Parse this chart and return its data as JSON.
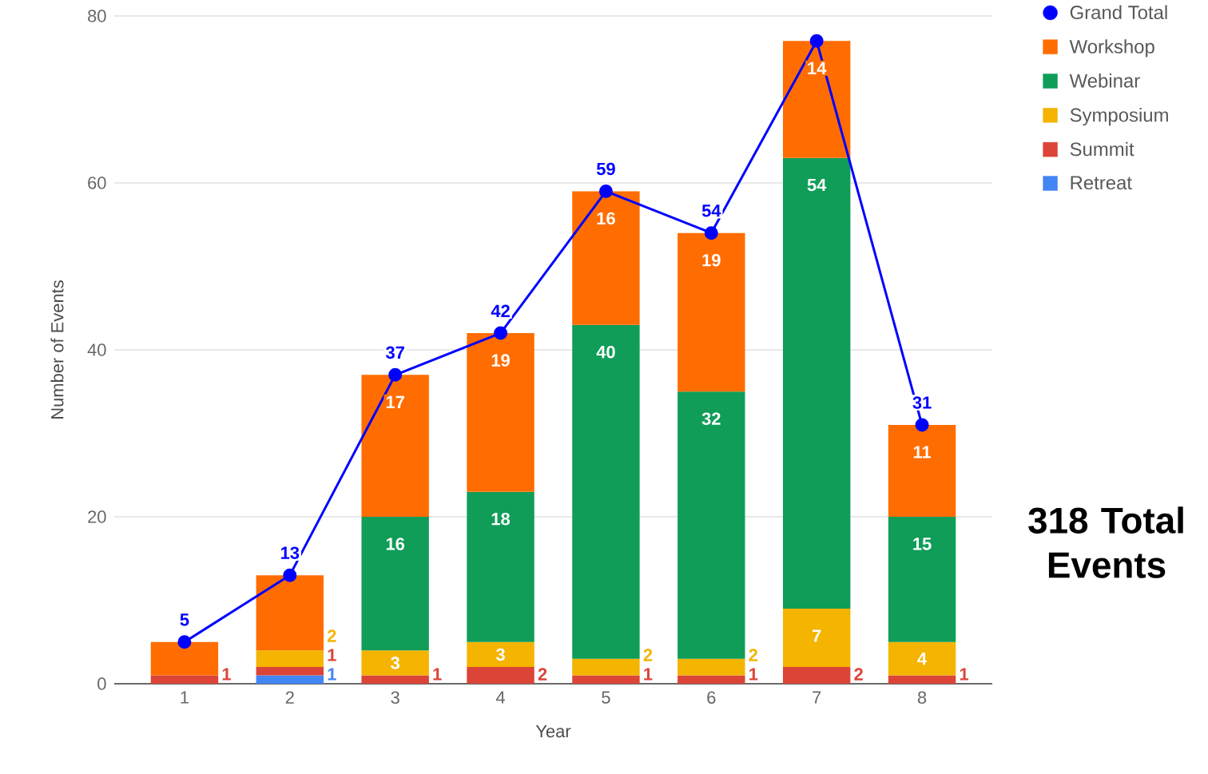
{
  "chart_data": {
    "type": "bar",
    "stacked": true,
    "xlabel": "Year",
    "ylabel": "Number of Events",
    "categories": [
      "1",
      "2",
      "3",
      "4",
      "5",
      "6",
      "7",
      "8"
    ],
    "ylim": [
      0,
      80
    ],
    "yticks": [
      0,
      20,
      40,
      60,
      80
    ],
    "grid": "y",
    "legend": "top right",
    "annotations": [
      "318 Total Events"
    ],
    "series": [
      {
        "name": "Retreat",
        "color": "#4285f4",
        "values": [
          null,
          1,
          null,
          null,
          null,
          null,
          null,
          null
        ],
        "value_labels": [
          null,
          "1",
          null,
          null,
          null,
          null,
          null,
          null
        ]
      },
      {
        "name": "Summit",
        "color": "#db4437",
        "values": [
          1,
          1,
          1,
          2,
          1,
          1,
          2,
          1
        ],
        "value_labels": [
          "1",
          "1",
          "1",
          "2",
          "1",
          "1",
          "2",
          "1"
        ]
      },
      {
        "name": "Symposium",
        "color": "#f4b400",
        "values": [
          null,
          2,
          3,
          3,
          2,
          2,
          7,
          4
        ],
        "value_labels": [
          null,
          "2",
          "3",
          "3",
          "2",
          "2",
          "7",
          "4"
        ]
      },
      {
        "name": "Webinar",
        "color": "#0f9d58",
        "values": [
          null,
          null,
          16,
          18,
          40,
          32,
          54,
          15
        ],
        "value_labels": [
          null,
          null,
          "16",
          "18",
          "40",
          "32",
          "54",
          "15"
        ]
      },
      {
        "name": "Workshop",
        "color": "#ff6d01",
        "values": [
          4,
          9,
          17,
          19,
          16,
          19,
          14,
          11
        ],
        "value_labels": [
          null,
          null,
          "17",
          "19",
          "16",
          "19",
          "14",
          "11"
        ]
      },
      {
        "name": "Grand Total",
        "type": "line",
        "color": "#0000ff",
        "marker": "circle",
        "values": [
          5,
          13,
          37,
          42,
          59,
          54,
          77,
          31
        ],
        "value_labels": [
          "5",
          "13",
          "37",
          "42",
          "59",
          "54",
          null,
          "31"
        ]
      }
    ]
  }
}
